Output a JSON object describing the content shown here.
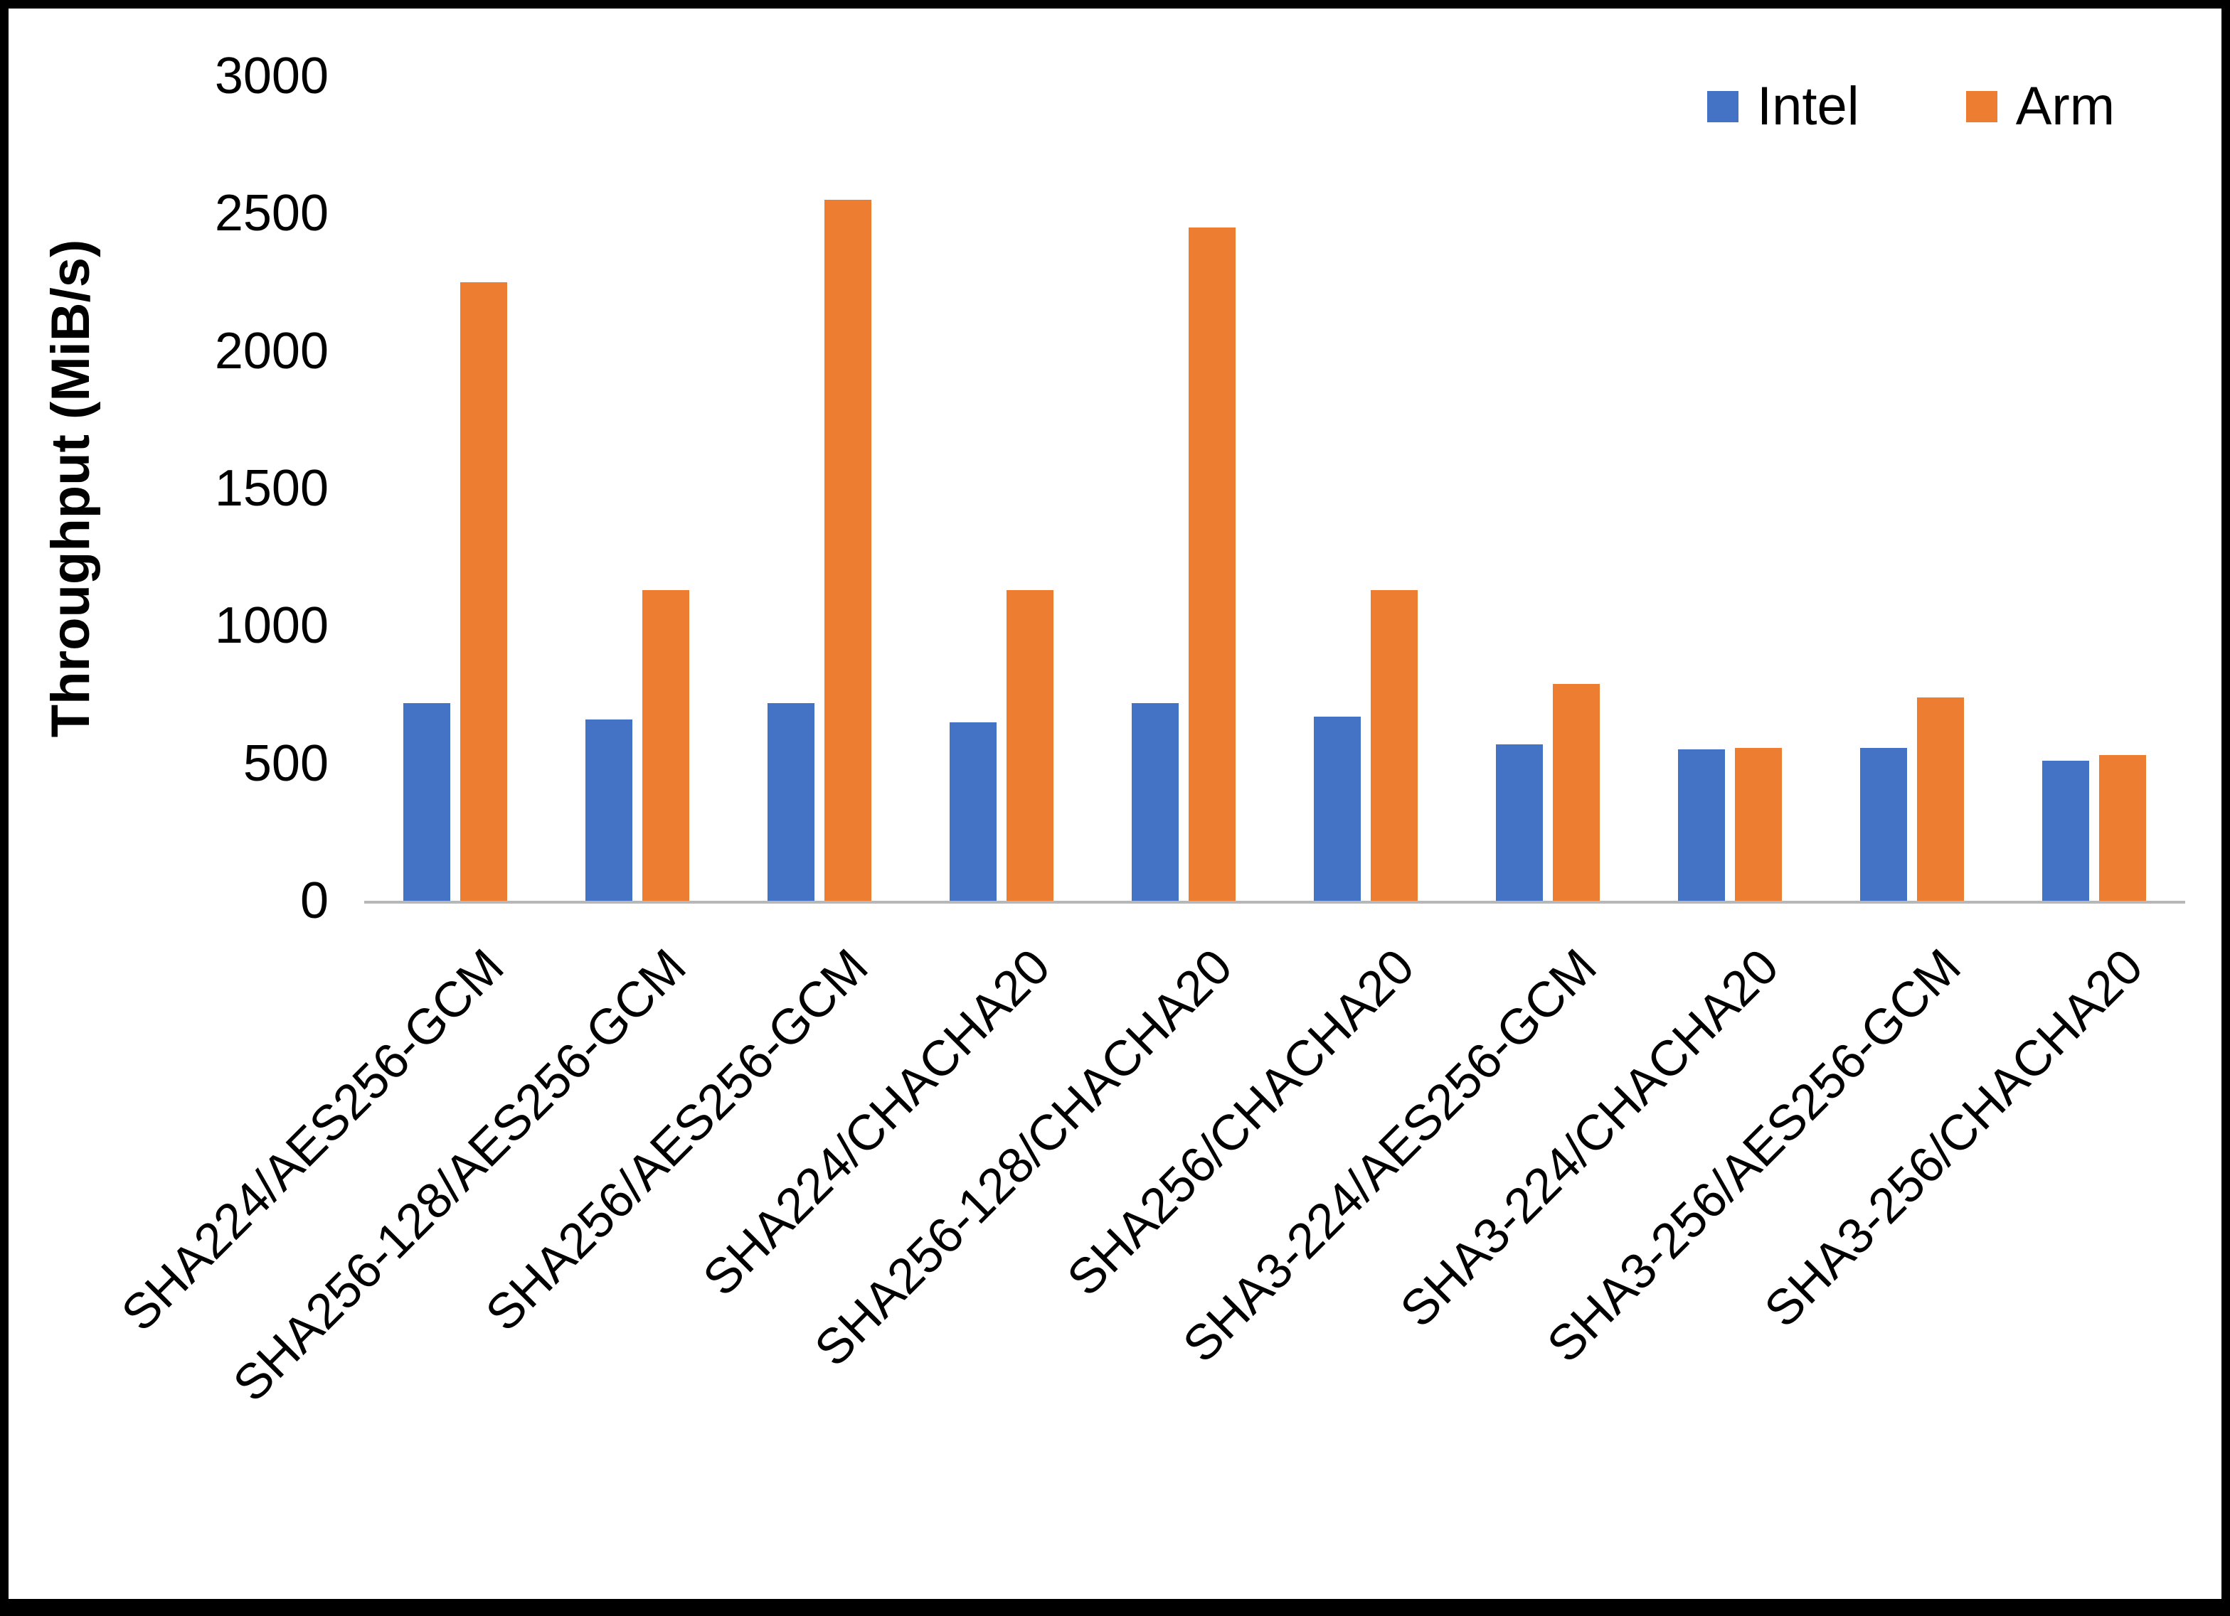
{
  "chart_data": {
    "type": "bar",
    "title": "",
    "xlabel": "",
    "ylabel": "Throughput (MiB/s)",
    "ylim": [
      0,
      3000
    ],
    "y_ticks": [
      0,
      500,
      1000,
      1500,
      2000,
      2500,
      3000
    ],
    "grid": false,
    "legend_position": "top-right",
    "categories": [
      "SHA224/AES256-GCM",
      "SHA256-128/AES256-GCM",
      "SHA256/AES256-GCM",
      "SHA224/CHACHA20",
      "SHA256-128/CHACHA20",
      "SHA256/CHACHA20",
      "SHA3-224/AES256-GCM",
      "SHA3-224/CHACHA20",
      "SHA3-256/AES256-GCM",
      "SHA3-256/CHACHA20"
    ],
    "series": [
      {
        "name": "Intel",
        "color": "#4472C4",
        "values": [
          720,
          660,
          720,
          650,
          720,
          670,
          570,
          550,
          555,
          510
        ]
      },
      {
        "name": "Arm",
        "color": "#ED7D31",
        "values": [
          2250,
          1130,
          2550,
          1130,
          2450,
          1130,
          790,
          555,
          740,
          530
        ]
      }
    ]
  }
}
